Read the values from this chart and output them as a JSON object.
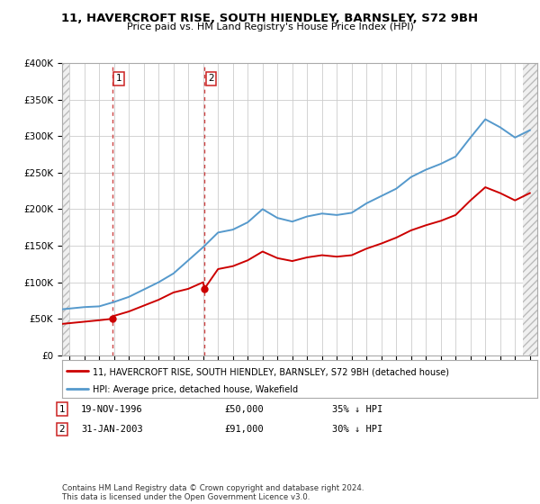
{
  "title": "11, HAVERCROFT RISE, SOUTH HIENDLEY, BARNSLEY, S72 9BH",
  "subtitle": "Price paid vs. HM Land Registry's House Price Index (HPI)",
  "legend_line1": "11, HAVERCROFT RISE, SOUTH HIENDLEY, BARNSLEY, S72 9BH (detached house)",
  "legend_line2": "HPI: Average price, detached house, Wakefield",
  "footnote": "Contains HM Land Registry data © Crown copyright and database right 2024.\nThis data is licensed under the Open Government Licence v3.0.",
  "purchases": [
    {
      "label": "1",
      "date": "19-NOV-1996",
      "price": 50000,
      "year": 1996.88,
      "pct": "35%",
      "dir": "↓"
    },
    {
      "label": "2",
      "date": "31-JAN-2003",
      "price": 91000,
      "year": 2003.08,
      "pct": "30%",
      "dir": "↓"
    }
  ],
  "red_line_color": "#cc0000",
  "blue_line_color": "#5599cc",
  "point_color": "#cc0000",
  "dashed_color": "#cc4444",
  "ylim": [
    0,
    400000
  ],
  "yticks": [
    0,
    50000,
    100000,
    150000,
    200000,
    250000,
    300000,
    350000,
    400000
  ],
  "ytick_labels": [
    "£0",
    "£50K",
    "£100K",
    "£150K",
    "£200K",
    "£250K",
    "£300K",
    "£350K",
    "£400K"
  ],
  "xlim_start": 1993.5,
  "xlim_end": 2025.5,
  "hpi_years": [
    1993.5,
    1994,
    1995,
    1996,
    1997,
    1998,
    1999,
    2000,
    2001,
    2002,
    2003,
    2004,
    2005,
    2006,
    2007,
    2008,
    2009,
    2010,
    2011,
    2012,
    2013,
    2014,
    2015,
    2016,
    2017,
    2018,
    2019,
    2020,
    2021,
    2022,
    2023,
    2024,
    2025
  ],
  "hpi_values": [
    63000,
    64000,
    66000,
    67000,
    73000,
    80000,
    90000,
    100000,
    112000,
    130000,
    148000,
    168000,
    172000,
    182000,
    200000,
    188000,
    183000,
    190000,
    194000,
    192000,
    195000,
    208000,
    218000,
    228000,
    244000,
    254000,
    262000,
    272000,
    298000,
    323000,
    312000,
    298000,
    308000
  ],
  "red_years": [
    1993.5,
    1994,
    1995,
    1996,
    1996.88,
    1997,
    1998,
    1999,
    2000,
    2001,
    2002,
    2003,
    2003.08,
    2004,
    2005,
    2006,
    2007,
    2008,
    2009,
    2010,
    2011,
    2012,
    2013,
    2014,
    2015,
    2016,
    2017,
    2018,
    2019,
    2020,
    2021,
    2022,
    2023,
    2024,
    2025
  ],
  "red_values": [
    43000,
    44000,
    46000,
    48000,
    50000,
    54000,
    60000,
    68000,
    76000,
    86000,
    91000,
    100000,
    91000,
    118000,
    122000,
    130000,
    142000,
    133000,
    129000,
    134000,
    137000,
    135000,
    137000,
    146000,
    153000,
    161000,
    171000,
    178000,
    184000,
    192000,
    212000,
    230000,
    222000,
    212000,
    222000
  ]
}
